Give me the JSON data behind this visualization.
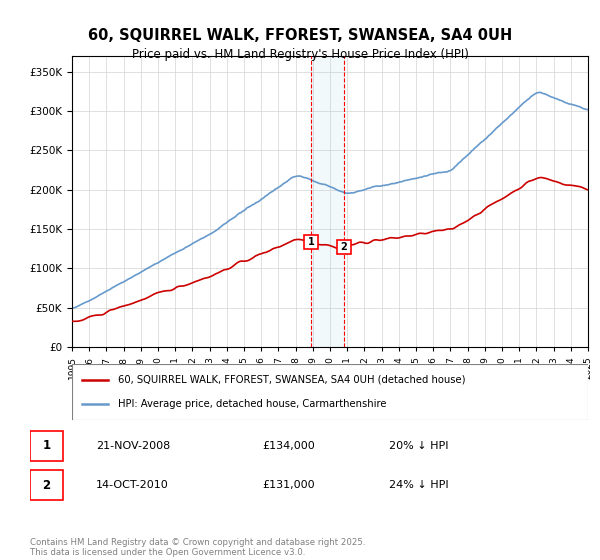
{
  "title": "60, SQUIRREL WALK, FFOREST, SWANSEA, SA4 0UH",
  "subtitle": "Price paid vs. HM Land Registry's House Price Index (HPI)",
  "property_label": "60, SQUIRREL WALK, FFOREST, SWANSEA, SA4 0UH (detached house)",
  "hpi_label": "HPI: Average price, detached house, Carmarthenshire",
  "transaction1_date": "21-NOV-2008",
  "transaction1_price": "£134,000",
  "transaction1_hpi": "20% ↓ HPI",
  "transaction2_date": "14-OCT-2010",
  "transaction2_price": "£131,000",
  "transaction2_hpi": "24% ↓ HPI",
  "footer": "Contains HM Land Registry data © Crown copyright and database right 2025.\nThis data is licensed under the Open Government Licence v3.0.",
  "property_color": "#cc0000",
  "hpi_color": "#6699cc",
  "marker1_x": 2008.9,
  "marker2_x": 2010.8,
  "xmin": 1995,
  "xmax": 2025,
  "ymin": 0,
  "ymax": 370000,
  "yticks": [
    0,
    50000,
    100000,
    150000,
    200000,
    250000,
    300000,
    350000
  ]
}
